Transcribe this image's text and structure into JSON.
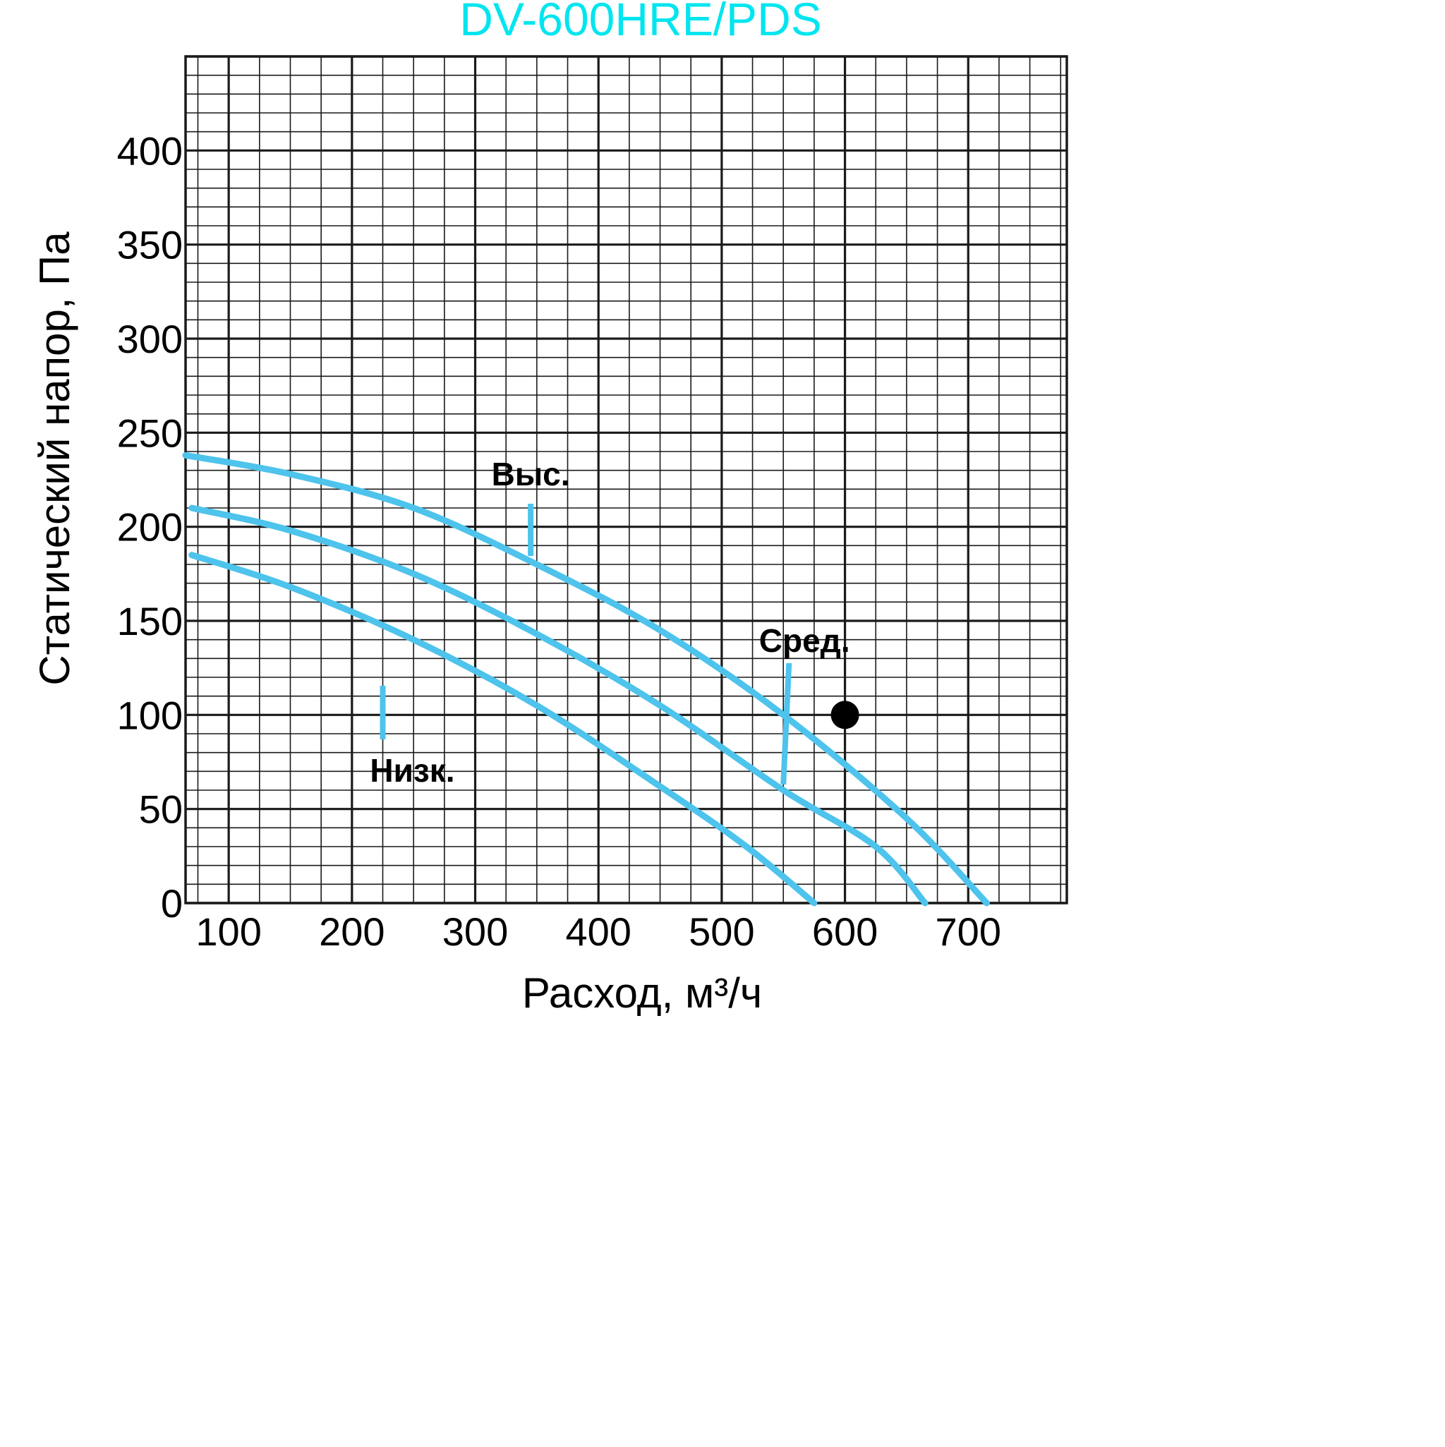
{
  "chart_data": {
    "type": "line",
    "title": "DV-600HRE/PDS",
    "xlabel": "Расход, м³/ч",
    "ylabel": "Статический напор, Па",
    "xlim": [
      65,
      780
    ],
    "ylim": [
      0,
      450
    ],
    "xticks": [
      100,
      200,
      300,
      400,
      500,
      600,
      700
    ],
    "yticks": [
      0,
      50,
      100,
      150,
      200,
      250,
      300,
      350,
      400
    ],
    "grid": true,
    "series": [
      {
        "name": "Выс.",
        "x": [
          65,
          150,
          250,
          350,
          450,
          550,
          650,
          715
        ],
        "y": [
          238,
          228,
          210,
          180,
          145,
          100,
          45,
          0
        ]
      },
      {
        "name": "Сред.",
        "x": [
          70,
          150,
          250,
          350,
          450,
          550,
          625,
          665
        ],
        "y": [
          210,
          198,
          175,
          143,
          105,
          60,
          30,
          0
        ]
      },
      {
        "name": "Низк.",
        "x": [
          70,
          150,
          250,
          350,
          450,
          520,
          575
        ],
        "y": [
          185,
          168,
          140,
          105,
          62,
          30,
          0
        ]
      }
    ],
    "annotations": [
      {
        "text": "Выс.",
        "series": "Выс.",
        "at_x": 345
      },
      {
        "text": "Сред.",
        "series": "Сред.",
        "at_x": 550
      },
      {
        "text": "Низк.",
        "series": "Низк.",
        "at_x": 225
      }
    ],
    "marker_point": {
      "x": 600,
      "y": 100
    },
    "colors": {
      "title": "#00e5ef",
      "curve": "#4ec3ec",
      "grid": "#1a1a1a",
      "marker": "#000000"
    }
  }
}
